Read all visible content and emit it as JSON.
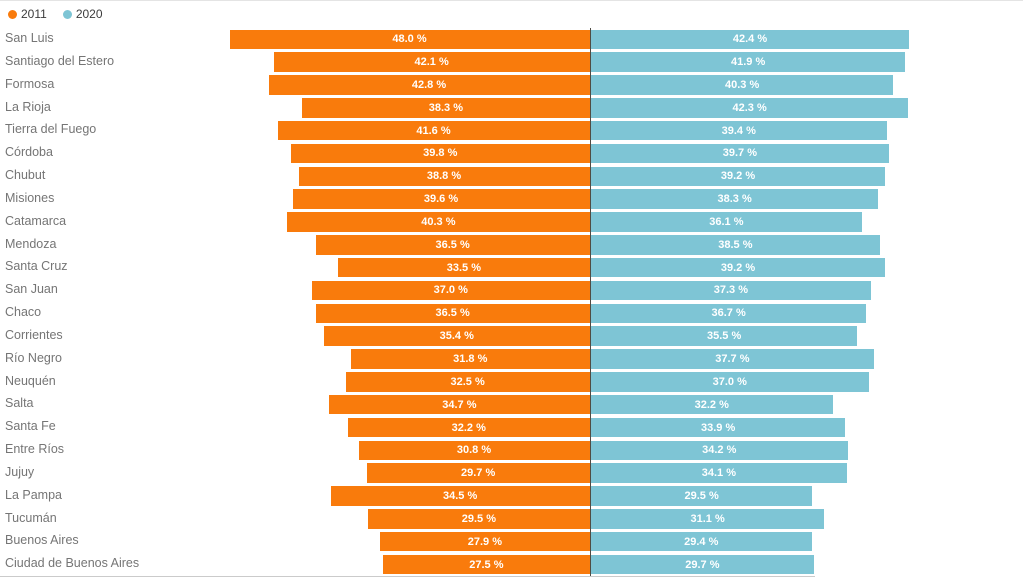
{
  "legend": {
    "items": [
      {
        "label": "2011",
        "color": "#f97b0c"
      },
      {
        "label": "2020",
        "color": "#7ec5d5"
      }
    ]
  },
  "chart_data": {
    "type": "bar",
    "variant": "diverging-horizontal-butterfly",
    "unit": "%",
    "legend_position": "top-left",
    "grid": false,
    "value_label_format": "{value} %",
    "categories": [
      "San Luis",
      "Santiago del Estero",
      "Formosa",
      "La Rioja",
      "Tierra del Fuego",
      "Córdoba",
      "Chubut",
      "Misiones",
      "Catamarca",
      "Mendoza",
      "Santa Cruz",
      "San Juan",
      "Chaco",
      "Corrientes",
      "Río Negro",
      "Neuquén",
      "Salta",
      "Santa Fe",
      "Entre Ríos",
      "Jujuy",
      "La Pampa",
      "Tucumán",
      "Buenos Aires",
      "Ciudad de Buenos Aires"
    ],
    "series": [
      {
        "name": "2011",
        "color": "#f97b0c",
        "values": [
          48.0,
          42.1,
          42.8,
          38.3,
          41.6,
          39.8,
          38.8,
          39.6,
          40.3,
          36.5,
          33.5,
          37.0,
          36.5,
          35.4,
          31.8,
          32.5,
          34.7,
          32.2,
          30.8,
          29.7,
          34.5,
          29.5,
          27.9,
          27.5
        ]
      },
      {
        "name": "2020",
        "color": "#7ec5d5",
        "values": [
          42.4,
          41.9,
          40.3,
          42.3,
          39.4,
          39.7,
          39.2,
          38.3,
          36.1,
          38.5,
          39.2,
          37.3,
          36.7,
          35.5,
          37.7,
          37.0,
          32.2,
          33.9,
          34.2,
          34.1,
          29.5,
          31.1,
          29.4,
          29.7
        ]
      }
    ]
  },
  "colors": {
    "series_2011": "#f97b0c",
    "series_2020": "#7ec5d5",
    "divider": "#4f4c44",
    "category_label": "#757575",
    "value_label": "#ffffff",
    "baseline": "#cbcbcb",
    "top_border": "#e4e4e4"
  }
}
